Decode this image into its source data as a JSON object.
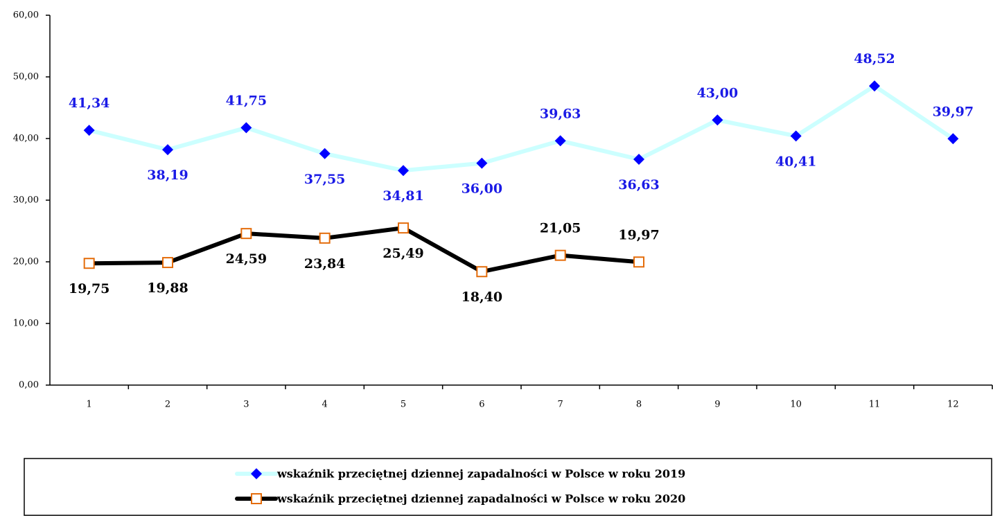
{
  "chart_data": {
    "type": "line",
    "categories": [
      "1",
      "2",
      "3",
      "4",
      "5",
      "6",
      "7",
      "8",
      "9",
      "10",
      "11",
      "12"
    ],
    "ylim": [
      0,
      60
    ],
    "yticks": [
      {
        "value": 0,
        "label": "0,00"
      },
      {
        "value": 10,
        "label": "10,00"
      },
      {
        "value": 20,
        "label": "20,00"
      },
      {
        "value": 30,
        "label": "30,00"
      },
      {
        "value": 40,
        "label": "40,00"
      },
      {
        "value": 50,
        "label": "50,00"
      },
      {
        "value": 60,
        "label": "60,00"
      }
    ],
    "series": [
      {
        "name": "wskaźnik przeciętnej dziennej zapadalności w Polsce w roku 2019",
        "color": "#ccffff",
        "marker_color": "#0000ff",
        "label_color": "#1a1ae6",
        "marker": "diamond",
        "values": [
          41.34,
          38.19,
          41.75,
          37.55,
          34.81,
          36.0,
          39.63,
          36.63,
          43.0,
          40.41,
          48.52,
          39.97
        ],
        "value_labels": [
          "41,34",
          "38,19",
          "41,75",
          "37,55",
          "34,81",
          "36,00",
          "39,63",
          "36,63",
          "43,00",
          "40,41",
          "48,52",
          "39,97"
        ]
      },
      {
        "name": "wskaźnik przeciętnej dziennej zapadalności w Polsce w roku 2020",
        "color": "#000000",
        "marker_color": "#e46c0a",
        "label_color": "#000000",
        "marker": "square",
        "values": [
          19.75,
          19.88,
          24.59,
          23.84,
          25.49,
          18.4,
          21.05,
          19.97,
          null,
          null,
          null,
          null
        ],
        "value_labels": [
          "19,75",
          "19,88",
          "24,59",
          "23,84",
          "25,49",
          "18,40",
          "21,05",
          "19,97",
          null,
          null,
          null,
          null
        ]
      }
    ]
  }
}
